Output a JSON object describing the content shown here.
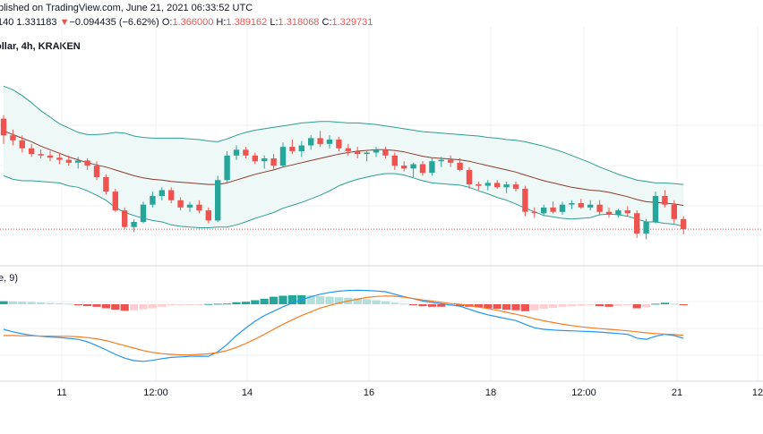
{
  "header": {
    "published_line": "blished on TradingView.com, June 21, 2021 06:33:52 UTC",
    "ohlc_prefix": "140",
    "last_price": "1.331183",
    "change_arrow": "▼",
    "change": "−0.094435 (−6.62%)",
    "o_label": "O:",
    "o_value": "1.366000",
    "h_label": "H:",
    "h_value": "1.389162",
    "l_label": "L:",
    "l_value": "1.318068",
    "c_label": "C:",
    "c_value": "1.329731",
    "symbol_line": "ollar, 4h, KRAKEN"
  },
  "macd_label": "e, 9)",
  "colors": {
    "up": "#26a69a",
    "down": "#ef5350",
    "bb_line": "#2f9e8e",
    "bb_fill": "#eef8f6",
    "basis": "#8b3a2e",
    "macd": "#2196f3",
    "signal": "#f57c20",
    "hist_up_strong": "#26a69a",
    "hist_up_weak": "#b2dfdb",
    "hist_down_strong": "#ef5350",
    "hist_down_weak": "#ffcdd2",
    "grid": "#eef0f3",
    "price_line": "#ef5350"
  },
  "chart_data": [
    {
      "type": "candlestick",
      "title": "",
      "interval": "4h",
      "exchange": "KRAKEN",
      "candles": [
        [
          1.415,
          1.42,
          1.38,
          1.392
        ],
        [
          1.392,
          1.4,
          1.378,
          1.385
        ],
        [
          1.385,
          1.392,
          1.368,
          1.374
        ],
        [
          1.374,
          1.38,
          1.362,
          1.366
        ],
        [
          1.366,
          1.372,
          1.36,
          1.364
        ],
        [
          1.364,
          1.37,
          1.356,
          1.361
        ],
        [
          1.361,
          1.368,
          1.352,
          1.358
        ],
        [
          1.358,
          1.364,
          1.35,
          1.354
        ],
        [
          1.354,
          1.362,
          1.346,
          1.357
        ],
        [
          1.357,
          1.36,
          1.344,
          1.35
        ],
        [
          1.35,
          1.356,
          1.33,
          1.334
        ],
        [
          1.334,
          1.338,
          1.31,
          1.314
        ],
        [
          1.314,
          1.318,
          1.286,
          1.288
        ],
        [
          1.288,
          1.292,
          1.262,
          1.265
        ],
        [
          1.265,
          1.276,
          1.258,
          1.272
        ],
        [
          1.272,
          1.3,
          1.27,
          1.296
        ],
        [
          1.296,
          1.314,
          1.292,
          1.308
        ],
        [
          1.308,
          1.32,
          1.302,
          1.316
        ],
        [
          1.316,
          1.32,
          1.298,
          1.302
        ],
        [
          1.302,
          1.306,
          1.288,
          1.292
        ],
        [
          1.292,
          1.3,
          1.286,
          1.296
        ],
        [
          1.296,
          1.302,
          1.284,
          1.288
        ],
        [
          1.288,
          1.292,
          1.27,
          1.274
        ],
        [
          1.274,
          1.336,
          1.272,
          1.33
        ],
        [
          1.33,
          1.37,
          1.326,
          1.364
        ],
        [
          1.364,
          1.378,
          1.358,
          1.372
        ],
        [
          1.372,
          1.376,
          1.36,
          1.364
        ],
        [
          1.364,
          1.368,
          1.352,
          1.356
        ],
        [
          1.356,
          1.364,
          1.346,
          1.36
        ],
        [
          1.36,
          1.366,
          1.344,
          1.35
        ],
        [
          1.35,
          1.382,
          1.348,
          1.376
        ],
        [
          1.376,
          1.386,
          1.366,
          1.37
        ],
        [
          1.37,
          1.384,
          1.362,
          1.378
        ],
        [
          1.378,
          1.392,
          1.372,
          1.388
        ],
        [
          1.388,
          1.398,
          1.376,
          1.38
        ],
        [
          1.38,
          1.392,
          1.374,
          1.386
        ],
        [
          1.386,
          1.39,
          1.37,
          1.374
        ],
        [
          1.374,
          1.38,
          1.364,
          1.37
        ],
        [
          1.37,
          1.376,
          1.36,
          1.366
        ],
        [
          1.366,
          1.372,
          1.356,
          1.368
        ],
        [
          1.368,
          1.376,
          1.362,
          1.372
        ],
        [
          1.372,
          1.376,
          1.36,
          1.364
        ],
        [
          1.364,
          1.368,
          1.344,
          1.35
        ],
        [
          1.35,
          1.356,
          1.342,
          1.346
        ],
        [
          1.346,
          1.354,
          1.334,
          1.352
        ],
        [
          1.352,
          1.356,
          1.336,
          1.34
        ],
        [
          1.34,
          1.36,
          1.336,
          1.356
        ],
        [
          1.356,
          1.362,
          1.348,
          1.358
        ],
        [
          1.358,
          1.364,
          1.348,
          1.354
        ],
        [
          1.354,
          1.36,
          1.342,
          1.344
        ],
        [
          1.344,
          1.348,
          1.318,
          1.324
        ],
        [
          1.324,
          1.328,
          1.316,
          1.322
        ],
        [
          1.322,
          1.33,
          1.316,
          1.326
        ],
        [
          1.326,
          1.33,
          1.318,
          1.32
        ],
        [
          1.32,
          1.328,
          1.312,
          1.324
        ],
        [
          1.324,
          1.328,
          1.314,
          1.318
        ],
        [
          1.318,
          1.322,
          1.28,
          1.286
        ],
        [
          1.286,
          1.292,
          1.278,
          1.284
        ],
        [
          1.284,
          1.296,
          1.28,
          1.292
        ],
        [
          1.292,
          1.3,
          1.284,
          1.286
        ],
        [
          1.286,
          1.3,
          1.282,
          1.296
        ],
        [
          1.296,
          1.302,
          1.29,
          1.298
        ],
        [
          1.298,
          1.304,
          1.29,
          1.292
        ],
        [
          1.292,
          1.302,
          1.288,
          1.296
        ],
        [
          1.296,
          1.302,
          1.282,
          1.286
        ],
        [
          1.286,
          1.292,
          1.278,
          1.282
        ],
        [
          1.282,
          1.29,
          1.278,
          1.288
        ],
        [
          1.288,
          1.294,
          1.28,
          1.284
        ],
        [
          1.284,
          1.288,
          1.25,
          1.256
        ],
        [
          1.256,
          1.276,
          1.248,
          1.272
        ],
        [
          1.272,
          1.314,
          1.27,
          1.308
        ],
        [
          1.308,
          1.316,
          1.292,
          1.296
        ],
        [
          1.296,
          1.302,
          1.27,
          1.276
        ],
        [
          1.276,
          1.28,
          1.255,
          1.262
        ]
      ],
      "bollinger": {
        "upper": [
          1.46,
          1.455,
          1.447,
          1.437,
          1.426,
          1.417,
          1.408,
          1.402,
          1.396,
          1.393,
          1.393,
          1.394,
          1.396,
          1.395,
          1.391,
          1.389,
          1.388,
          1.388,
          1.388,
          1.388,
          1.387,
          1.386,
          1.384,
          1.383,
          1.387,
          1.392,
          1.396,
          1.399,
          1.401,
          1.403,
          1.405,
          1.407,
          1.409,
          1.41,
          1.411,
          1.411,
          1.41,
          1.409,
          1.409,
          1.408,
          1.407,
          1.405,
          1.403,
          1.401,
          1.399,
          1.397,
          1.396,
          1.395,
          1.394,
          1.393,
          1.392,
          1.391,
          1.389,
          1.388,
          1.386,
          1.385,
          1.383,
          1.38,
          1.377,
          1.373,
          1.369,
          1.364,
          1.359,
          1.354,
          1.348,
          1.343,
          1.338,
          1.334,
          1.33,
          1.328,
          1.326,
          1.326,
          1.325,
          1.324
        ],
        "basis": [
          1.398,
          1.393,
          1.388,
          1.383,
          1.377,
          1.372,
          1.367,
          1.362,
          1.358,
          1.354,
          1.351,
          1.348,
          1.344,
          1.34,
          1.336,
          1.333,
          1.331,
          1.33,
          1.328,
          1.327,
          1.326,
          1.325,
          1.324,
          1.324,
          1.326,
          1.33,
          1.334,
          1.338,
          1.341,
          1.344,
          1.348,
          1.351,
          1.354,
          1.357,
          1.36,
          1.363,
          1.366,
          1.368,
          1.37,
          1.371,
          1.372,
          1.372,
          1.371,
          1.369,
          1.366,
          1.363,
          1.361,
          1.36,
          1.359,
          1.358,
          1.356,
          1.353,
          1.35,
          1.347,
          1.344,
          1.341,
          1.337,
          1.333,
          1.329,
          1.326,
          1.323,
          1.32,
          1.318,
          1.316,
          1.315,
          1.313,
          1.31,
          1.307,
          1.303,
          1.3,
          1.299,
          1.298,
          1.297,
          1.295
        ],
        "lower": [
          1.336,
          1.331,
          1.329,
          1.329,
          1.328,
          1.327,
          1.326,
          1.322,
          1.32,
          1.315,
          1.309,
          1.302,
          1.292,
          1.285,
          1.281,
          1.277,
          1.274,
          1.272,
          1.268,
          1.266,
          1.265,
          1.264,
          1.264,
          1.265,
          1.265,
          1.268,
          1.272,
          1.277,
          1.281,
          1.285,
          1.291,
          1.295,
          1.299,
          1.304,
          1.309,
          1.315,
          1.322,
          1.327,
          1.331,
          1.334,
          1.337,
          1.339,
          1.339,
          1.337,
          1.333,
          1.329,
          1.326,
          1.325,
          1.324,
          1.323,
          1.32,
          1.315,
          1.311,
          1.306,
          1.302,
          1.297,
          1.291,
          1.286,
          1.281,
          1.279,
          1.277,
          1.276,
          1.277,
          1.278,
          1.282,
          1.283,
          1.282,
          1.28,
          1.276,
          1.272,
          1.272,
          1.27,
          1.269,
          1.266
        ]
      },
      "last_price_line": 1.262,
      "ylim": [
        1.22,
        1.5
      ]
    },
    {
      "type": "macd",
      "title": "",
      "macd": [
        -0.01,
        -0.011,
        -0.0118,
        -0.0124,
        -0.0128,
        -0.0131,
        -0.0133,
        -0.0136,
        -0.014,
        -0.015,
        -0.0165,
        -0.0182,
        -0.02,
        -0.0215,
        -0.0225,
        -0.0228,
        -0.0224,
        -0.0217,
        -0.0212,
        -0.021,
        -0.0208,
        -0.0207,
        -0.0208,
        -0.019,
        -0.016,
        -0.0125,
        -0.0095,
        -0.0068,
        -0.0045,
        -0.0028,
        -0.001,
        0.0005,
        0.0018,
        0.003,
        0.004,
        0.0047,
        0.0052,
        0.0055,
        0.0056,
        0.0055,
        0.0053,
        0.005,
        0.004,
        0.003,
        0.0022,
        0.0013,
        0.0007,
        0.0002,
        -0.0003,
        -0.0008,
        -0.002,
        -0.0032,
        -0.0042,
        -0.005,
        -0.0058,
        -0.0065,
        -0.008,
        -0.0094,
        -0.01,
        -0.0103,
        -0.0105,
        -0.0106,
        -0.0108,
        -0.0109,
        -0.0111,
        -0.0114,
        -0.0117,
        -0.012,
        -0.0135,
        -0.014,
        -0.0128,
        -0.012,
        -0.0125,
        -0.0136
      ],
      "signal": [
        -0.0125,
        -0.0125,
        -0.0126,
        -0.0126,
        -0.0127,
        -0.0127,
        -0.0128,
        -0.0128,
        -0.013,
        -0.0133,
        -0.0138,
        -0.0145,
        -0.0155,
        -0.0165,
        -0.0175,
        -0.0185,
        -0.0192,
        -0.0197,
        -0.02,
        -0.0202,
        -0.0202,
        -0.02,
        -0.0198,
        -0.0193,
        -0.0185,
        -0.0172,
        -0.0157,
        -0.0139,
        -0.012,
        -0.01,
        -0.008,
        -0.0062,
        -0.0045,
        -0.003,
        -0.0015,
        -0.0005,
        0.0005,
        0.0013,
        0.002,
        0.0027,
        0.0031,
        0.0033,
        0.0032,
        0.0028,
        0.0023,
        0.0017,
        0.0013,
        0.0008,
        0.0003,
        0.0,
        -0.0005,
        -0.0011,
        -0.0017,
        -0.0024,
        -0.0032,
        -0.004,
        -0.0048,
        -0.0058,
        -0.0066,
        -0.0073,
        -0.008,
        -0.0085,
        -0.009,
        -0.0094,
        -0.0097,
        -0.01,
        -0.0103,
        -0.0106,
        -0.011,
        -0.0114,
        -0.0117,
        -0.0119,
        -0.0121,
        -0.0124
      ],
      "histogram": [
        0.0012,
        0.0011,
        0.001,
        0.0009,
        0.0007,
        0.0005,
        0.0004,
        0.0002,
        -0.0004,
        -0.0007,
        -0.001,
        -0.0016,
        -0.0022,
        -0.0026,
        -0.0024,
        -0.002,
        -0.0016,
        -0.001,
        -0.0004,
        -0.0003,
        -0.0002,
        -0.0001,
        0.0001,
        0.0002,
        0.0003,
        0.0008,
        0.001,
        0.0016,
        0.0022,
        0.003,
        0.0034,
        0.0036,
        0.0036,
        0.0035,
        0.0032,
        0.003,
        0.0028,
        0.0026,
        0.0024,
        0.002,
        0.0016,
        0.0012,
        0.0006,
        0.0002,
        -0.0004,
        -0.0008,
        -0.001,
        -0.001,
        -0.0006,
        -0.0008,
        -0.001,
        -0.0012,
        -0.0016,
        -0.0018,
        -0.0022,
        -0.0024,
        -0.0028,
        -0.0024,
        -0.0018,
        -0.0014,
        -0.001,
        -0.0008,
        -0.0006,
        -0.0004,
        -0.0008,
        -0.001,
        -0.0006,
        -0.0004,
        -0.0016,
        -0.0012,
        0.0002,
        0.0006,
        0.0002,
        -0.0004
      ],
      "ylim": [
        -0.03,
        0.015
      ]
    }
  ],
  "x_axis": {
    "labels": [
      "11",
      "12:00",
      "14",
      "16",
      "18",
      "12:00",
      "21",
      "12"
    ]
  }
}
